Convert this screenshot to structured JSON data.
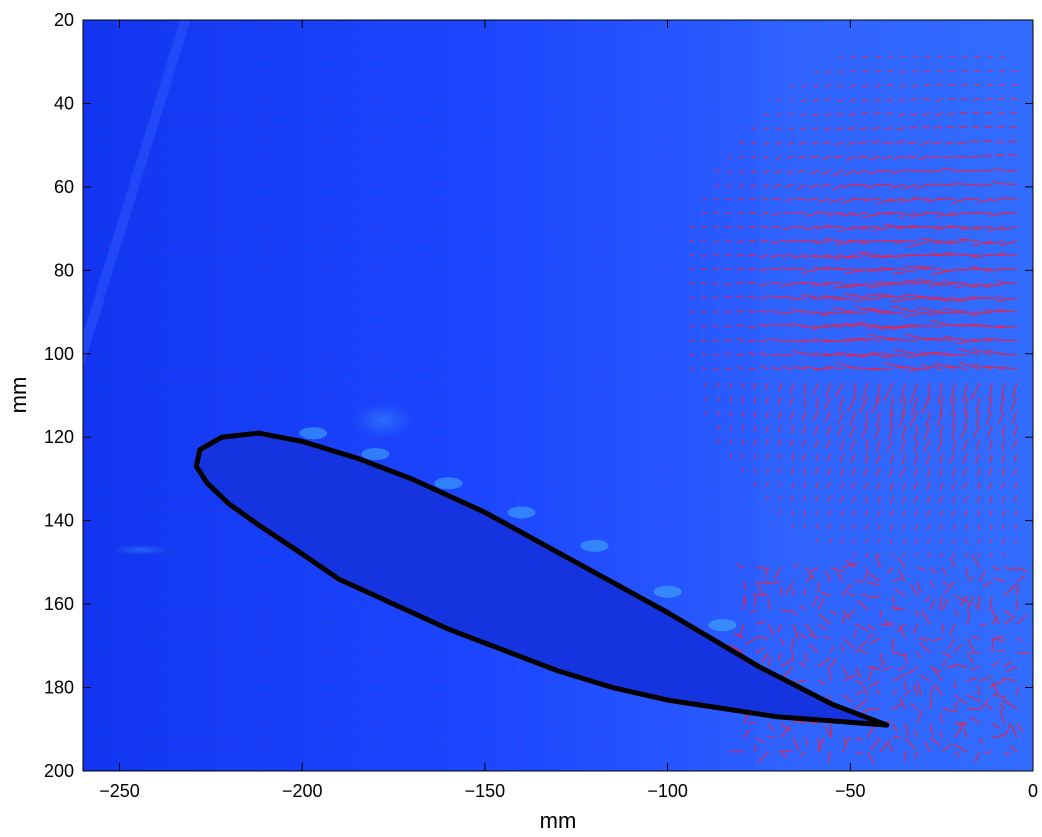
{
  "chart_data": {
    "type": "scatter",
    "title": "",
    "xlabel": "mm",
    "ylabel": "mm",
    "xlim": [
      -260,
      0
    ],
    "ylim": [
      200,
      20
    ],
    "y_axis_reversed": true,
    "x_ticks": [
      -250,
      -200,
      -150,
      -100,
      -50,
      0
    ],
    "x_tick_labels": [
      "−250",
      "−200",
      "−150",
      "−100",
      "−50",
      "0"
    ],
    "y_ticks": [
      20,
      40,
      60,
      80,
      100,
      120,
      140,
      160,
      180,
      200
    ],
    "y_tick_labels": [
      "20",
      "40",
      "60",
      "80",
      "100",
      "120",
      "140",
      "160",
      "180",
      "200"
    ],
    "grid": false,
    "legend": "none",
    "background_colormap": "jet",
    "background_base_color": "#1a3cff",
    "vector_color": "#ff1a2e",
    "airfoil_color": "#000000",
    "vector_field_description": "PIV velocity vectors",
    "airfoil_outline": {
      "x": [
        -40,
        -55,
        -75,
        -100,
        -125,
        -150,
        -170,
        -185,
        -200,
        -212,
        -222,
        -228,
        -229,
        -226,
        -220,
        -212,
        -200,
        -190,
        -175,
        -160,
        -145,
        -130,
        -115,
        -100,
        -85,
        -70,
        -55,
        -40
      ],
      "y": [
        189,
        184,
        175,
        162,
        150,
        138,
        130,
        125,
        121,
        119,
        120,
        123,
        127,
        131,
        136,
        141,
        148,
        154,
        160,
        166,
        171,
        176,
        180,
        183,
        185,
        187,
        188,
        189
      ]
    }
  }
}
